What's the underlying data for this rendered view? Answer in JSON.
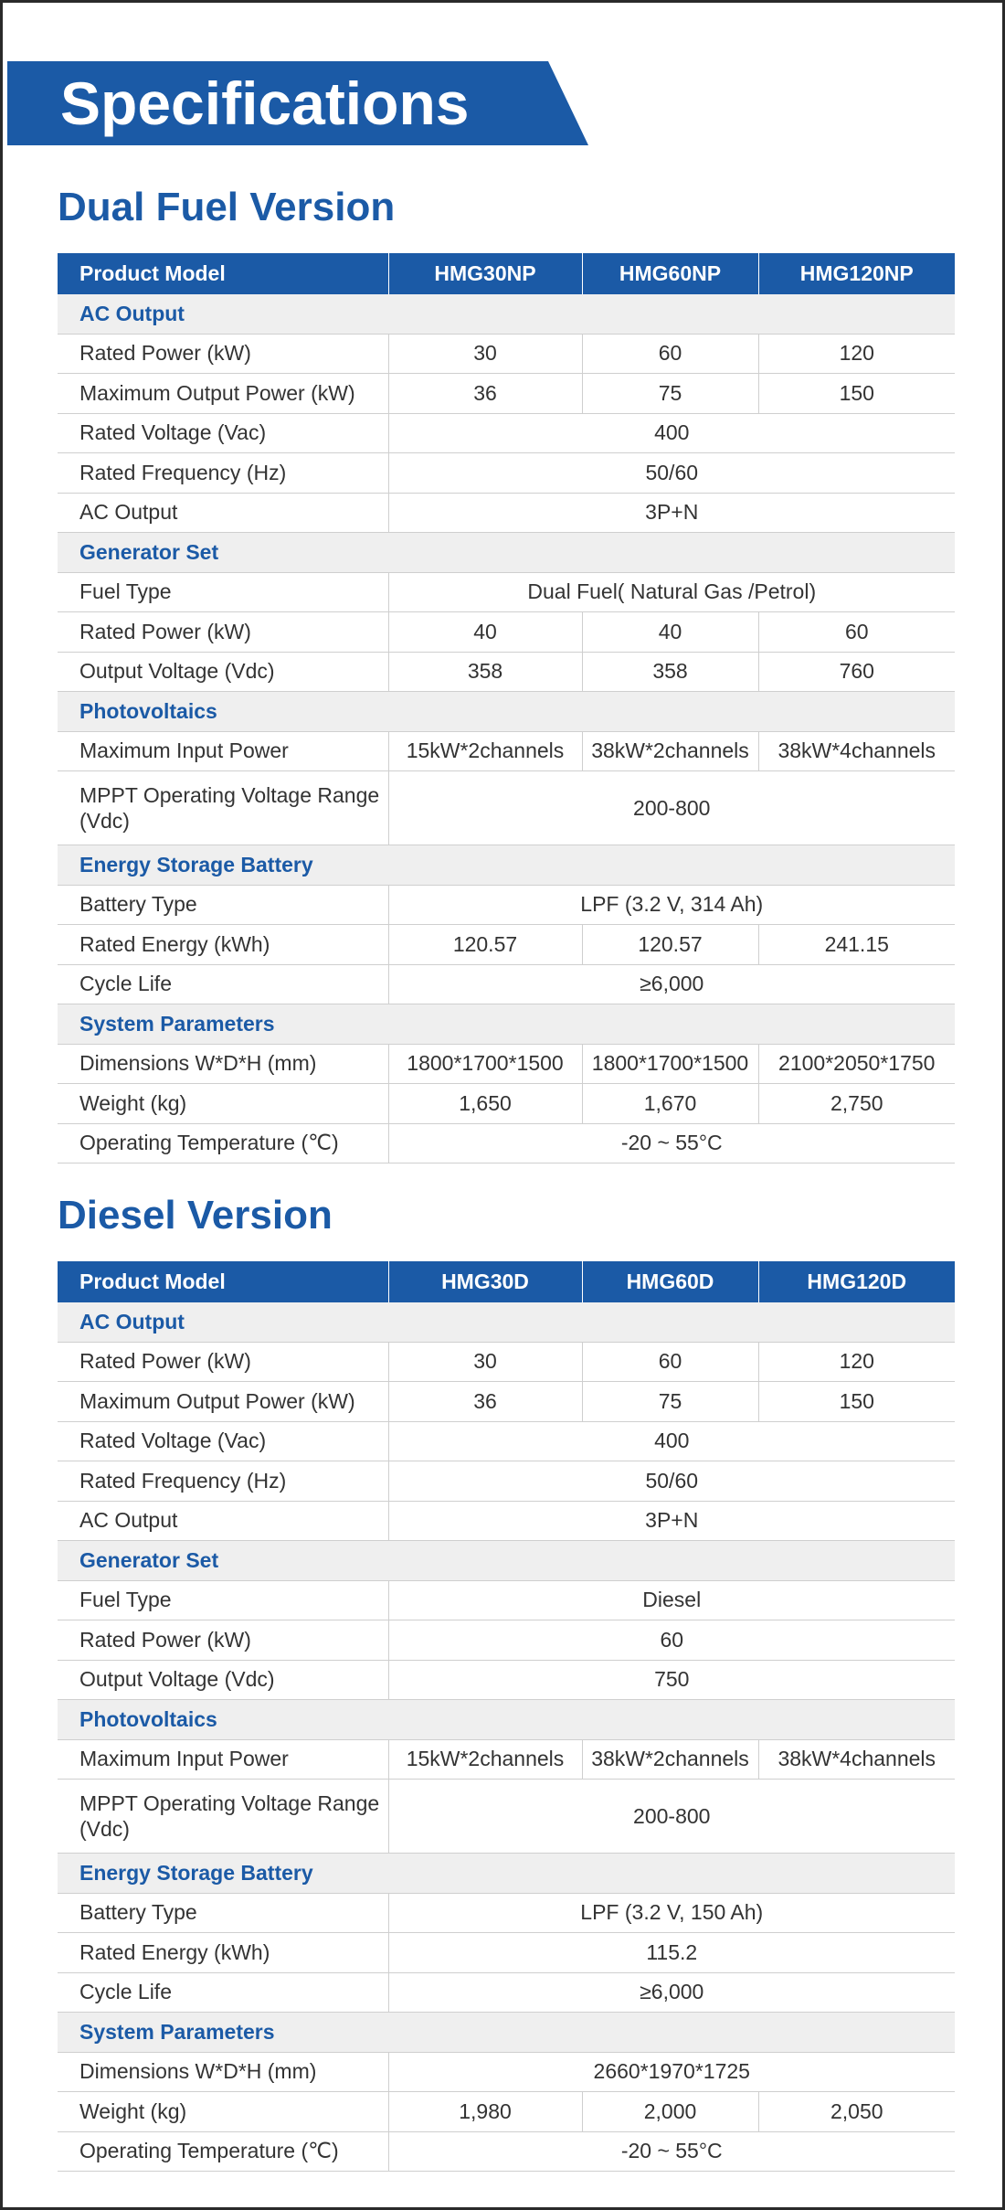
{
  "header": {
    "title": "Specifications"
  },
  "sections": [
    {
      "title": "Dual Fuel Version",
      "table": {
        "columns": [
          "Product Model",
          "HMG30NP",
          "HMG60NP",
          "HMG120NP"
        ],
        "groups": [
          {
            "title": "AC Output",
            "rows": [
              {
                "label": "Rated Power (kW)",
                "values": [
                  "30",
                  "60",
                  "120"
                ]
              },
              {
                "label": "Maximum Output Power (kW)",
                "values": [
                  "36",
                  "75",
                  "150"
                ]
              },
              {
                "label": "Rated Voltage (Vac)",
                "values": [
                  "400"
                ]
              },
              {
                "label": "Rated Frequency (Hz)",
                "values": [
                  "50/60"
                ]
              },
              {
                "label": "AC Output",
                "values": [
                  "3P+N"
                ]
              }
            ]
          },
          {
            "title": "Generator Set",
            "rows": [
              {
                "label": "Fuel Type",
                "values": [
                  "Dual Fuel( Natural Gas /Petrol)"
                ]
              },
              {
                "label": "Rated Power (kW)",
                "values": [
                  "40",
                  "40",
                  "60"
                ]
              },
              {
                "label": "Output Voltage (Vdc)",
                "values": [
                  "358",
                  "358",
                  "760"
                ]
              }
            ]
          },
          {
            "title": "Photovoltaics",
            "rows": [
              {
                "label": "Maximum Input Power",
                "values": [
                  "15kW*2channels",
                  "38kW*2channels",
                  "38kW*4channels"
                ]
              },
              {
                "label": "MPPT Operating Voltage Range (Vdc)",
                "values": [
                  "200-800"
                ]
              }
            ]
          },
          {
            "title": "Energy Storage Battery",
            "rows": [
              {
                "label": "Battery Type",
                "values": [
                  "LPF (3.2 V, 314 Ah)"
                ]
              },
              {
                "label": "Rated Energy (kWh)",
                "values": [
                  "120.57",
                  "120.57",
                  "241.15"
                ]
              },
              {
                "label": "Cycle Life",
                "values": [
                  "≥6,000"
                ]
              }
            ]
          },
          {
            "title": "System Parameters",
            "rows": [
              {
                "label": "Dimensions W*D*H (mm)",
                "values": [
                  "1800*1700*1500",
                  "1800*1700*1500",
                  "2100*2050*1750"
                ]
              },
              {
                "label": "Weight (kg)",
                "values": [
                  "1,650",
                  "1,670",
                  "2,750"
                ]
              },
              {
                "label": "Operating Temperature (℃)",
                "values": [
                  "-20 ~ 55°C"
                ]
              }
            ]
          }
        ]
      }
    },
    {
      "title": "Diesel Version",
      "table": {
        "columns": [
          "Product Model",
          "HMG30D",
          "HMG60D",
          "HMG120D"
        ],
        "groups": [
          {
            "title": "AC Output",
            "rows": [
              {
                "label": "Rated Power (kW)",
                "values": [
                  "30",
                  "60",
                  "120"
                ]
              },
              {
                "label": "Maximum Output Power (kW)",
                "values": [
                  "36",
                  "75",
                  "150"
                ]
              },
              {
                "label": "Rated Voltage (Vac)",
                "values": [
                  "400"
                ]
              },
              {
                "label": "Rated Frequency (Hz)",
                "values": [
                  "50/60"
                ]
              },
              {
                "label": "AC Output",
                "values": [
                  "3P+N"
                ]
              }
            ]
          },
          {
            "title": "Generator Set",
            "rows": [
              {
                "label": "Fuel Type",
                "values": [
                  "Diesel"
                ]
              },
              {
                "label": "Rated Power (kW)",
                "values": [
                  "60"
                ]
              },
              {
                "label": "Output Voltage (Vdc)",
                "values": [
                  "750"
                ]
              }
            ]
          },
          {
            "title": "Photovoltaics",
            "rows": [
              {
                "label": "Maximum Input Power",
                "values": [
                  "15kW*2channels",
                  "38kW*2channels",
                  "38kW*4channels"
                ]
              },
              {
                "label": "MPPT Operating Voltage Range (Vdc)",
                "values": [
                  "200-800"
                ]
              }
            ]
          },
          {
            "title": "Energy Storage Battery",
            "rows": [
              {
                "label": "Battery Type",
                "values": [
                  "LPF (3.2 V, 150 Ah)"
                ]
              },
              {
                "label": "Rated Energy (kWh)",
                "values": [
                  "115.2"
                ]
              },
              {
                "label": "Cycle Life",
                "values": [
                  "≥6,000"
                ]
              }
            ]
          },
          {
            "title": "System Parameters",
            "rows": [
              {
                "label": "Dimensions W*D*H (mm)",
                "values": [
                  "2660*1970*1725"
                ]
              },
              {
                "label": "Weight (kg)",
                "values": [
                  "1,980",
                  "2,000",
                  "2,050"
                ]
              },
              {
                "label": "Operating Temperature (℃)",
                "values": [
                  "-20 ~ 55°C"
                ]
              }
            ]
          }
        ]
      }
    }
  ]
}
